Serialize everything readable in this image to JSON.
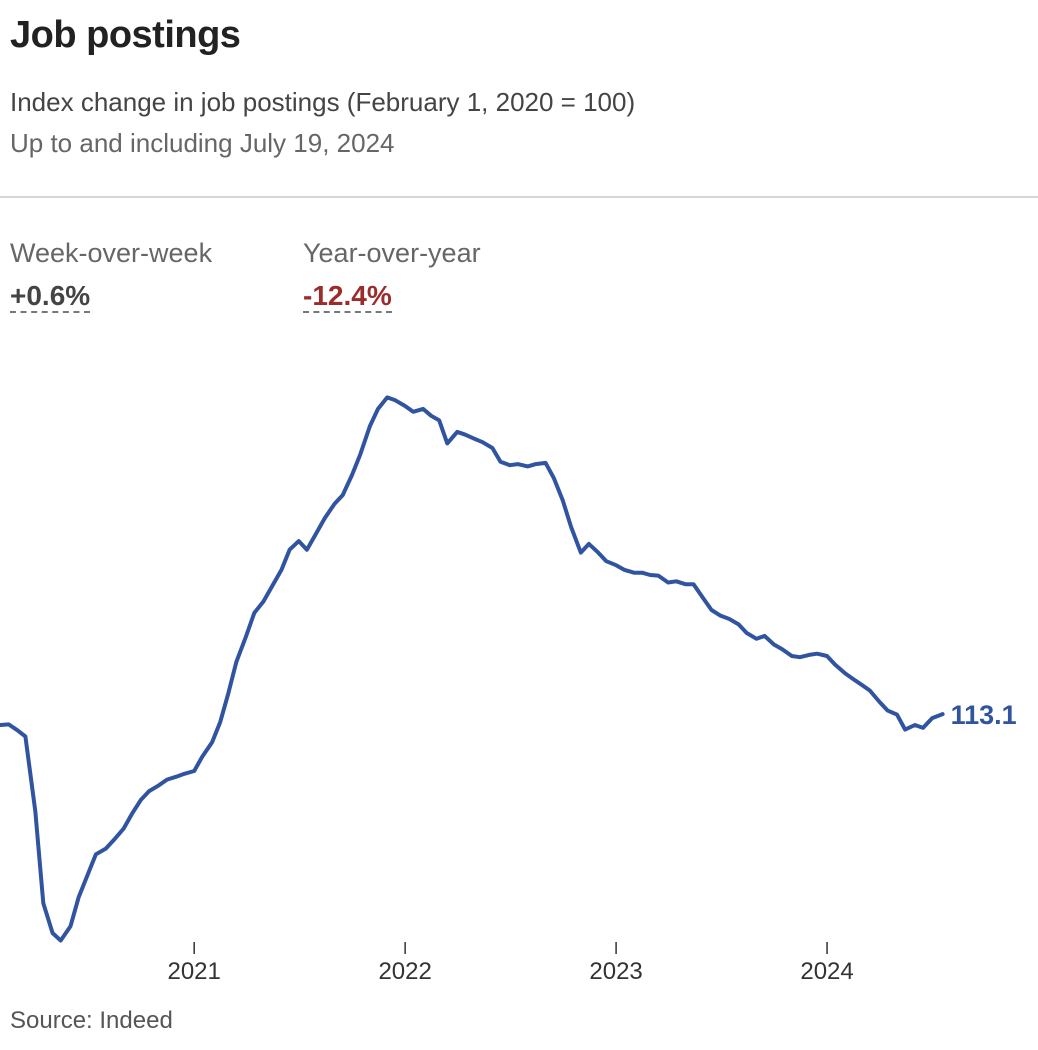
{
  "header": {
    "title": "Job postings",
    "subtitle": "Index change in job postings (February 1, 2020 = 100)",
    "note": "Up to and including July 19, 2024"
  },
  "stats": {
    "week_over_week": {
      "label": "Week-over-week",
      "value": "+0.6%"
    },
    "year_over_year": {
      "label": "Year-over-year",
      "value": "-12.4%"
    }
  },
  "colors": {
    "line": "#3154a0",
    "negative": "#9b2c2c",
    "text": "#222222",
    "muted": "#666666"
  },
  "chart_data": {
    "type": "line",
    "title": "Job postings",
    "subtitle": "Index change in job postings (February 1, 2020 = 100)",
    "xlabel": "",
    "ylabel": "",
    "x_ticks": [
      "2021",
      "2022",
      "2023",
      "2024"
    ],
    "grid": false,
    "legend": "none",
    "end_label": "113.1",
    "xlim": [
      "2020-01-31",
      "2024-12-31"
    ],
    "ylim": [
      61.2,
      164.2
    ],
    "series": [
      {
        "values": [
          [
            "2020-02-01",
            100.0
          ],
          [
            "2020-02-15",
            100.1
          ],
          [
            "2020-03-01",
            99.1
          ],
          [
            "2020-03-15",
            98.0
          ],
          [
            "2020-04-01",
            85.0
          ],
          [
            "2020-04-15",
            69.0
          ],
          [
            "2020-05-01",
            63.8
          ],
          [
            "2020-05-15",
            62.5
          ],
          [
            "2020-06-01",
            65.0
          ],
          [
            "2020-06-15",
            70.0
          ],
          [
            "2020-07-01",
            74.0
          ],
          [
            "2020-07-15",
            77.5
          ],
          [
            "2020-08-01",
            78.5
          ],
          [
            "2020-08-15",
            80.0
          ],
          [
            "2020-09-01",
            82.0
          ],
          [
            "2020-09-15",
            84.5
          ],
          [
            "2020-10-01",
            87.0
          ],
          [
            "2020-10-15",
            88.5
          ],
          [
            "2020-11-01",
            89.5
          ],
          [
            "2020-11-15",
            90.5
          ],
          [
            "2020-12-01",
            91.0
          ],
          [
            "2020-12-15",
            91.5
          ],
          [
            "2021-01-01",
            92.0
          ],
          [
            "2021-01-15",
            94.5
          ],
          [
            "2021-02-01",
            97.0
          ],
          [
            "2021-02-15",
            100.5
          ],
          [
            "2021-03-01",
            105.5
          ],
          [
            "2021-03-15",
            111.0
          ],
          [
            "2021-04-01",
            115.5
          ],
          [
            "2021-04-15",
            119.5
          ],
          [
            "2021-05-01",
            121.5
          ],
          [
            "2021-05-15",
            124.0
          ],
          [
            "2021-06-01",
            127.0
          ],
          [
            "2021-06-15",
            130.5
          ],
          [
            "2021-07-01",
            132.0
          ],
          [
            "2021-07-15",
            130.5
          ],
          [
            "2021-08-01",
            133.5
          ],
          [
            "2021-08-15",
            136.0
          ],
          [
            "2021-09-01",
            138.5
          ],
          [
            "2021-09-15",
            140.0
          ],
          [
            "2021-10-01",
            143.5
          ],
          [
            "2021-10-15",
            147.0
          ],
          [
            "2021-11-01",
            152.0
          ],
          [
            "2021-11-15",
            155.0
          ],
          [
            "2021-12-01",
            157.0
          ],
          [
            "2021-12-15",
            156.5
          ],
          [
            "2022-01-01",
            155.5
          ],
          [
            "2022-01-15",
            154.5
          ],
          [
            "2022-02-01",
            155.0
          ],
          [
            "2022-02-15",
            153.8
          ],
          [
            "2022-03-01",
            153.0
          ],
          [
            "2022-03-15",
            149.0
          ],
          [
            "2022-04-01",
            151.0
          ],
          [
            "2022-04-15",
            150.5
          ],
          [
            "2022-05-01",
            149.8
          ],
          [
            "2022-05-15",
            149.2
          ],
          [
            "2022-06-01",
            148.2
          ],
          [
            "2022-06-15",
            145.8
          ],
          [
            "2022-07-01",
            145.2
          ],
          [
            "2022-07-15",
            145.4
          ],
          [
            "2022-08-01",
            145.0
          ],
          [
            "2022-08-15",
            145.4
          ],
          [
            "2022-09-01",
            145.6
          ],
          [
            "2022-09-15",
            143.0
          ],
          [
            "2022-10-01",
            139.0
          ],
          [
            "2022-10-15",
            134.5
          ],
          [
            "2022-11-01",
            130.0
          ],
          [
            "2022-11-15",
            131.5
          ],
          [
            "2022-12-01",
            130.0
          ],
          [
            "2022-12-15",
            128.5
          ],
          [
            "2023-01-01",
            127.8
          ],
          [
            "2023-01-15",
            127.0
          ],
          [
            "2023-02-01",
            126.5
          ],
          [
            "2023-02-15",
            126.5
          ],
          [
            "2023-03-01",
            126.1
          ],
          [
            "2023-03-15",
            126.0
          ],
          [
            "2023-04-01",
            124.8
          ],
          [
            "2023-04-15",
            125.0
          ],
          [
            "2023-05-01",
            124.5
          ],
          [
            "2023-05-15",
            124.5
          ],
          [
            "2023-06-01",
            122.0
          ],
          [
            "2023-06-15",
            120.0
          ],
          [
            "2023-07-01",
            119.0
          ],
          [
            "2023-07-15",
            118.5
          ],
          [
            "2023-08-01",
            117.5
          ],
          [
            "2023-08-15",
            116.0
          ],
          [
            "2023-09-01",
            115.0
          ],
          [
            "2023-09-15",
            115.5
          ],
          [
            "2023-10-01",
            114.0
          ],
          [
            "2023-10-15",
            113.2
          ],
          [
            "2023-11-01",
            112.0
          ],
          [
            "2023-11-15",
            111.8
          ],
          [
            "2023-12-01",
            112.2
          ],
          [
            "2023-12-15",
            112.4
          ],
          [
            "2024-01-01",
            112.0
          ],
          [
            "2024-01-15",
            110.5
          ],
          [
            "2024-02-01",
            109.0
          ],
          [
            "2024-02-15",
            108.0
          ],
          [
            "2024-03-01",
            107.0
          ],
          [
            "2024-03-15",
            106.0
          ],
          [
            "2024-04-01",
            104.0
          ],
          [
            "2024-04-15",
            102.5
          ],
          [
            "2024-05-01",
            101.8
          ],
          [
            "2024-05-15",
            99.2
          ],
          [
            "2024-06-01",
            100.0
          ],
          [
            "2024-06-15",
            99.5
          ],
          [
            "2024-07-01",
            101.2
          ],
          [
            "2024-07-19",
            113.1
          ]
        ]
      }
    ]
  },
  "source": "Source: Indeed"
}
